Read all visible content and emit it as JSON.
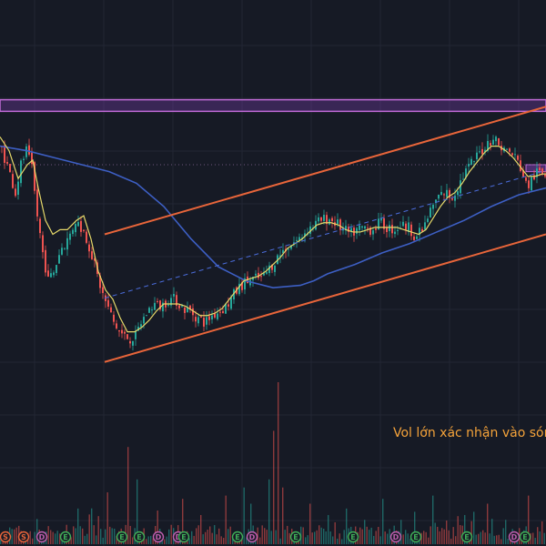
{
  "annotation": {
    "text": "Vol lớn xác nhận vào sóng"
  },
  "colors": {
    "background": "#161a25",
    "grid": "#222633",
    "up": "#26a69a",
    "down": "#ef5350",
    "ema_short": "#e6d96a",
    "ma_long": "#3d5fc4",
    "channel": "#e8653a",
    "channel_mid": "#4a6bd8",
    "resistance_band": "#7b3fb0",
    "resistance_band_border": "#c06ad6",
    "annotation": "#f5a33a",
    "event_earnings": "#3fae57",
    "event_dividend": "#c05fb0",
    "event_split": "#e8653a"
  },
  "chart_data": {
    "type": "candlestick",
    "title": "",
    "xlabel": "",
    "ylabel": "",
    "x_range": [
      0,
      600
    ],
    "price_range": [
      0,
      100
    ],
    "volume_range": [
      0,
      100
    ],
    "grid": true,
    "close_path": [
      [
        0,
        88
      ],
      [
        10,
        76
      ],
      [
        16,
        68
      ],
      [
        22,
        80
      ],
      [
        28,
        86
      ],
      [
        34,
        78
      ],
      [
        40,
        58
      ],
      [
        46,
        42
      ],
      [
        52,
        30
      ],
      [
        58,
        34
      ],
      [
        66,
        44
      ],
      [
        74,
        48
      ],
      [
        82,
        56
      ],
      [
        90,
        52
      ],
      [
        98,
        44
      ],
      [
        106,
        32
      ],
      [
        112,
        24
      ],
      [
        118,
        18
      ],
      [
        124,
        12
      ],
      [
        130,
        8
      ],
      [
        136,
        6
      ],
      [
        142,
        5
      ],
      [
        148,
        6
      ],
      [
        154,
        12
      ],
      [
        160,
        16
      ],
      [
        168,
        20
      ],
      [
        176,
        19
      ],
      [
        184,
        22
      ],
      [
        192,
        22
      ],
      [
        200,
        18
      ],
      [
        208,
        17
      ],
      [
        216,
        14
      ],
      [
        224,
        12
      ],
      [
        232,
        15
      ],
      [
        240,
        17
      ],
      [
        248,
        19
      ],
      [
        256,
        24
      ],
      [
        264,
        28
      ],
      [
        272,
        30
      ],
      [
        280,
        31
      ],
      [
        288,
        31
      ],
      [
        296,
        36
      ],
      [
        304,
        40
      ],
      [
        312,
        44
      ],
      [
        320,
        46
      ],
      [
        328,
        48
      ],
      [
        336,
        52
      ],
      [
        344,
        54
      ],
      [
        352,
        56
      ],
      [
        360,
        57
      ],
      [
        368,
        55
      ],
      [
        376,
        52
      ],
      [
        384,
        50
      ],
      [
        392,
        52
      ],
      [
        400,
        53
      ],
      [
        408,
        52
      ],
      [
        416,
        55
      ],
      [
        424,
        53
      ],
      [
        432,
        52
      ],
      [
        440,
        54
      ],
      [
        448,
        53
      ],
      [
        456,
        49
      ],
      [
        464,
        52
      ],
      [
        472,
        60
      ],
      [
        480,
        66
      ],
      [
        488,
        68
      ],
      [
        496,
        66
      ],
      [
        504,
        72
      ],
      [
        512,
        78
      ],
      [
        520,
        82
      ],
      [
        528,
        86
      ],
      [
        536,
        90
      ],
      [
        542,
        92
      ],
      [
        548,
        88
      ],
      [
        556,
        86
      ],
      [
        564,
        84
      ],
      [
        572,
        78
      ],
      [
        578,
        70
      ],
      [
        584,
        74
      ],
      [
        590,
        77
      ],
      [
        596,
        76
      ],
      [
        600,
        76
      ]
    ],
    "ema_short": [
      [
        0,
        92
      ],
      [
        10,
        86
      ],
      [
        20,
        74
      ],
      [
        30,
        80
      ],
      [
        36,
        82
      ],
      [
        42,
        70
      ],
      [
        50,
        56
      ],
      [
        58,
        50
      ],
      [
        66,
        52
      ],
      [
        74,
        52
      ],
      [
        84,
        56
      ],
      [
        92,
        58
      ],
      [
        100,
        48
      ],
      [
        108,
        34
      ],
      [
        116,
        26
      ],
      [
        124,
        22
      ],
      [
        132,
        14
      ],
      [
        140,
        8
      ],
      [
        148,
        8
      ],
      [
        156,
        10
      ],
      [
        164,
        13
      ],
      [
        172,
        17
      ],
      [
        180,
        20
      ],
      [
        188,
        20
      ],
      [
        196,
        20
      ],
      [
        204,
        19
      ],
      [
        212,
        17
      ],
      [
        220,
        15
      ],
      [
        228,
        15
      ],
      [
        236,
        16
      ],
      [
        244,
        18
      ],
      [
        252,
        22
      ],
      [
        260,
        26
      ],
      [
        268,
        30
      ],
      [
        276,
        31
      ],
      [
        284,
        32
      ],
      [
        292,
        34
      ],
      [
        300,
        37
      ],
      [
        308,
        40
      ],
      [
        316,
        44
      ],
      [
        324,
        46
      ],
      [
        332,
        48
      ],
      [
        340,
        51
      ],
      [
        348,
        54
      ],
      [
        356,
        55
      ],
      [
        364,
        55
      ],
      [
        372,
        54
      ],
      [
        380,
        52
      ],
      [
        388,
        51
      ],
      [
        396,
        51
      ],
      [
        404,
        52
      ],
      [
        412,
        53
      ],
      [
        420,
        53
      ],
      [
        428,
        53
      ],
      [
        436,
        53
      ],
      [
        444,
        52
      ],
      [
        452,
        51
      ],
      [
        460,
        50
      ],
      [
        468,
        52
      ],
      [
        476,
        57
      ],
      [
        484,
        62
      ],
      [
        492,
        66
      ],
      [
        500,
        68
      ],
      [
        508,
        72
      ],
      [
        516,
        77
      ],
      [
        524,
        81
      ],
      [
        532,
        85
      ],
      [
        540,
        88
      ],
      [
        548,
        88
      ],
      [
        556,
        86
      ],
      [
        564,
        83
      ],
      [
        572,
        79
      ],
      [
        580,
        75
      ],
      [
        588,
        75
      ],
      [
        596,
        76
      ],
      [
        600,
        76
      ]
    ],
    "ma_long": [
      [
        0,
        88
      ],
      [
        30,
        86
      ],
      [
        60,
        83
      ],
      [
        90,
        80
      ],
      [
        120,
        77
      ],
      [
        150,
        72
      ],
      [
        180,
        62
      ],
      [
        210,
        48
      ],
      [
        240,
        36
      ],
      [
        270,
        30
      ],
      [
        300,
        27
      ],
      [
        330,
        28
      ],
      [
        345,
        30
      ],
      [
        360,
        33
      ],
      [
        390,
        37
      ],
      [
        420,
        42
      ],
      [
        450,
        46
      ],
      [
        480,
        51
      ],
      [
        510,
        56
      ],
      [
        540,
        62
      ],
      [
        570,
        67
      ],
      [
        600,
        70
      ]
    ],
    "channel_upper": [
      [
        115,
        50
      ],
      [
        600,
        105
      ]
    ],
    "channel_lower": [
      [
        115,
        -5
      ],
      [
        600,
        50
      ]
    ],
    "channel_mid": [
      [
        115,
        22.5
      ],
      [
        600,
        77.5
      ]
    ],
    "resistance_band": [
      103,
      108
    ],
    "resistance_band_right": [
      77,
      80
    ],
    "horizontal_level": 80,
    "volume_spikes": [
      [
        305,
        100
      ],
      [
        300,
        70
      ],
      [
        295,
        40
      ],
      [
        310,
        35
      ],
      [
        140,
        60
      ],
      [
        150,
        40
      ],
      [
        118,
        32
      ],
      [
        82,
        35
      ],
      [
        85,
        22
      ],
      [
        241,
        40
      ],
      [
        248,
        30
      ],
      [
        268,
        35
      ],
      [
        275,
        25
      ],
      [
        420,
        28
      ],
      [
        471,
        45
      ],
      [
        475,
        30
      ],
      [
        492,
        22
      ],
      [
        517,
        28
      ],
      [
        520,
        20
      ],
      [
        535,
        25
      ],
      [
        580,
        30
      ],
      [
        596,
        20
      ],
      [
        200,
        28
      ],
      [
        220,
        18
      ],
      [
        340,
        25
      ],
      [
        360,
        18
      ],
      [
        380,
        22
      ],
      [
        400,
        15
      ],
      [
        440,
        15
      ],
      [
        455,
        20
      ],
      [
        510,
        18
      ],
      [
        555,
        15
      ]
    ],
    "events": [
      {
        "x": 4,
        "label": "S",
        "kind": "split"
      },
      {
        "x": 24,
        "label": "S",
        "kind": "split"
      },
      {
        "x": 44,
        "label": "D",
        "kind": "dividend"
      },
      {
        "x": 70,
        "label": "E",
        "kind": "earnings"
      },
      {
        "x": 132,
        "label": "E",
        "kind": "earnings"
      },
      {
        "x": 151,
        "label": "E",
        "kind": "earnings"
      },
      {
        "x": 172,
        "label": "D",
        "kind": "dividend"
      },
      {
        "x": 194,
        "label": "D",
        "kind": "dividend"
      },
      {
        "x": 200,
        "label": "E",
        "kind": "earnings"
      },
      {
        "x": 259,
        "label": "E",
        "kind": "earnings"
      },
      {
        "x": 275,
        "label": "D",
        "kind": "dividend"
      },
      {
        "x": 323,
        "label": "E",
        "kind": "earnings"
      },
      {
        "x": 386,
        "label": "E",
        "kind": "earnings"
      },
      {
        "x": 433,
        "label": "D",
        "kind": "dividend"
      },
      {
        "x": 455,
        "label": "E",
        "kind": "earnings"
      },
      {
        "x": 511,
        "label": "E",
        "kind": "earnings"
      },
      {
        "x": 563,
        "label": "D",
        "kind": "dividend"
      },
      {
        "x": 575,
        "label": "E",
        "kind": "earnings"
      }
    ]
  }
}
